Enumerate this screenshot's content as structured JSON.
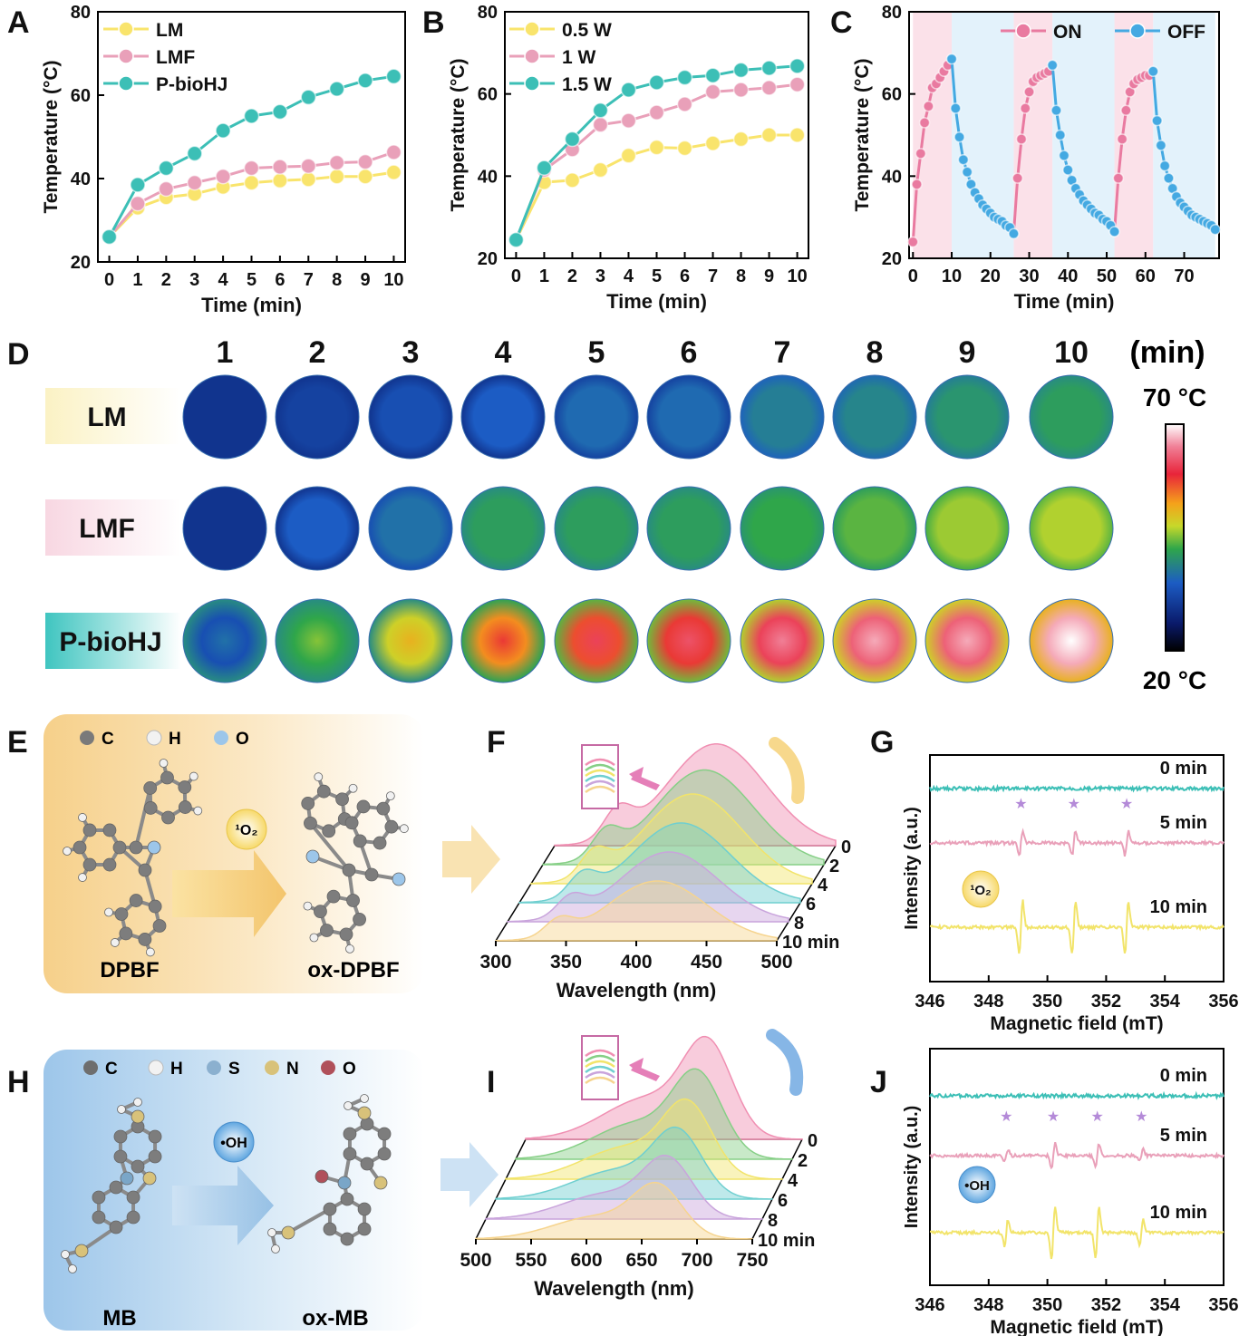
{
  "panel_labels": {
    "A": "A",
    "B": "B",
    "C": "C",
    "D": "D",
    "E": "E",
    "F": "F",
    "G": "G",
    "H": "H",
    "I": "I",
    "J": "J"
  },
  "chart_data": [
    {
      "id": "A",
      "type": "line",
      "xlabel": "Time (min)",
      "ylabel": "Temperature (°C)",
      "xlim": [
        -0.4,
        10.4
      ],
      "ylim": [
        20,
        80
      ],
      "xticks": [
        "0",
        "1",
        "2",
        "3",
        "4",
        "5",
        "6",
        "7",
        "8",
        "9",
        "10"
      ],
      "yticks": [
        "20",
        "40",
        "60",
        "80"
      ],
      "legend_position": "top-left",
      "x": [
        0,
        1,
        2,
        3,
        4,
        5,
        6,
        7,
        8,
        9,
        10
      ],
      "series": [
        {
          "name": "LM",
          "color": "#f9e46c",
          "values": [
            26,
            33,
            35.5,
            36.3,
            38,
            39,
            39.5,
            39.8,
            40.5,
            40.5,
            41.5
          ]
        },
        {
          "name": "LMF",
          "color": "#e9a0b9",
          "values": [
            26,
            34,
            37.5,
            39,
            40.5,
            42.5,
            42.8,
            43,
            43.8,
            44,
            46.3
          ]
        },
        {
          "name": "P-bioHJ",
          "color": "#3cbfb6",
          "values": [
            26,
            38.5,
            42.5,
            46,
            51.5,
            55,
            56,
            59.5,
            61.5,
            63.5,
            64.5
          ]
        }
      ]
    },
    {
      "id": "B",
      "type": "line",
      "xlabel": "Time (min)",
      "ylabel": "Temperature (°C)",
      "xlim": [
        -0.4,
        10.4
      ],
      "ylim": [
        20,
        80
      ],
      "xticks": [
        "0",
        "1",
        "2",
        "3",
        "4",
        "5",
        "6",
        "7",
        "8",
        "9",
        "10"
      ],
      "yticks": [
        "20",
        "40",
        "60",
        "80"
      ],
      "legend_position": "top-left",
      "x": [
        0,
        1,
        2,
        3,
        4,
        5,
        6,
        7,
        8,
        9,
        10
      ],
      "series": [
        {
          "name": "0.5 W",
          "color": "#f9e46c",
          "values": [
            24.5,
            38.5,
            39,
            41.5,
            45,
            47,
            46.8,
            48,
            49,
            50,
            50
          ]
        },
        {
          "name": "1 W",
          "color": "#e9a0b9",
          "values": [
            24.5,
            41.5,
            46.5,
            52.5,
            53.5,
            55.5,
            57.5,
            60.5,
            61,
            61.5,
            62.3
          ]
        },
        {
          "name": "1.5 W",
          "color": "#3cbfb6",
          "values": [
            24.5,
            42,
            49,
            56,
            61,
            62.8,
            64,
            64.5,
            65.8,
            66.3,
            66.8
          ]
        }
      ]
    },
    {
      "id": "C",
      "type": "line",
      "xlabel": "Time (min)",
      "ylabel": "Temperature (°C)",
      "xlim": [
        -1,
        79
      ],
      "ylim": [
        20,
        80
      ],
      "xticks": [
        "0",
        "10",
        "20",
        "30",
        "40",
        "50",
        "60",
        "70"
      ],
      "yticks": [
        "20",
        "40",
        "60",
        "80"
      ],
      "legend_position": "top-right",
      "on_intervals": [
        [
          0,
          10
        ],
        [
          26,
          36
        ],
        [
          52,
          62
        ]
      ],
      "off_intervals": [
        [
          10,
          26
        ],
        [
          36,
          52
        ],
        [
          62,
          78
        ]
      ],
      "series": [
        {
          "name": "ON",
          "color": "#e97aa0",
          "cycles": [
            {
              "x": [
                0,
                1,
                2,
                3,
                4,
                5,
                6,
                7,
                8,
                9,
                10
              ],
              "values": [
                24,
                38,
                45.5,
                53,
                57,
                61.5,
                62.5,
                64,
                65.5,
                67,
                68.5
              ]
            },
            {
              "x": [
                26,
                27,
                28,
                29,
                30,
                31,
                32,
                33,
                34,
                35,
                36
              ],
              "values": [
                26,
                39.5,
                49,
                56.5,
                60.5,
                63,
                64,
                64.5,
                65,
                65.5,
                67
              ]
            },
            {
              "x": [
                52,
                53,
                54,
                55,
                56,
                57,
                58,
                59,
                60,
                61,
                62
              ],
              "values": [
                26.5,
                39.5,
                49,
                56,
                60.5,
                62.5,
                63.5,
                64,
                64.5,
                64.5,
                65.5
              ]
            }
          ]
        },
        {
          "name": "OFF",
          "color": "#44a9e2",
          "cycles": [
            {
              "x": [
                10,
                11,
                12,
                13,
                14,
                15,
                16,
                17,
                18,
                19,
                20,
                21,
                22,
                23,
                24,
                25,
                26
              ],
              "values": [
                68.5,
                56.5,
                49.5,
                44,
                41,
                38,
                36,
                34.5,
                33,
                32,
                31,
                30,
                29.5,
                29,
                28,
                27.5,
                26
              ]
            },
            {
              "x": [
                36,
                37,
                38,
                39,
                40,
                41,
                42,
                43,
                44,
                45,
                46,
                47,
                48,
                49,
                50,
                51,
                52
              ],
              "values": [
                67,
                56,
                50,
                45,
                41.5,
                39,
                37,
                35.5,
                34,
                33,
                32,
                31,
                30.5,
                29.5,
                29,
                28,
                26.5
              ]
            },
            {
              "x": [
                62,
                63,
                64,
                65,
                66,
                67,
                68,
                69,
                70,
                71,
                72,
                73,
                74,
                75,
                76,
                77,
                78
              ],
              "values": [
                65.5,
                53.5,
                47.5,
                42.5,
                39.5,
                37,
                35,
                33.5,
                32.5,
                31.5,
                30.5,
                30,
                29.5,
                29,
                28.5,
                28,
                27
              ]
            }
          ]
        }
      ]
    },
    {
      "id": "D",
      "type": "heatmap",
      "time_labels": [
        "1",
        "2",
        "3",
        "4",
        "5",
        "6",
        "7",
        "8",
        "9",
        "10"
      ],
      "unit_label": "(min)",
      "row_labels": [
        "LM",
        "LMF",
        "P-bioHJ"
      ],
      "colorbar_max": "70 °C",
      "colorbar_min": "20 °C",
      "temperatures": [
        [
          22,
          23,
          24,
          25,
          27,
          27,
          30,
          31,
          34,
          36
        ],
        [
          22,
          25,
          28,
          36,
          36,
          36,
          38,
          40,
          43,
          44
        ],
        [
          28,
          42,
          50,
          57,
          60,
          61,
          64,
          66,
          66,
          70
        ]
      ]
    },
    {
      "id": "F",
      "type": "line",
      "xlabel": "Wavelength (nm)",
      "xticks": [
        "300",
        "350",
        "400",
        "450",
        "500"
      ],
      "xlim": [
        300,
        500
      ],
      "depth_labels": [
        "0",
        "2",
        "4",
        "6",
        "8",
        "10 min"
      ]
    },
    {
      "id": "G",
      "type": "line",
      "xlabel": "Magnetic field (mT)",
      "ylabel": "Intensity (a.u.)",
      "xticks": [
        "346",
        "348",
        "350",
        "352",
        "354",
        "356"
      ],
      "xlim": [
        346,
        356
      ],
      "trace_labels": [
        "0 min",
        "5 min",
        "10 min"
      ],
      "peak_positions": [
        349.1,
        350.9,
        352.7
      ]
    },
    {
      "id": "I",
      "type": "line",
      "xlabel": "Wavelength (nm)",
      "xticks": [
        "500",
        "550",
        "600",
        "650",
        "700",
        "750"
      ],
      "xlim": [
        500,
        750
      ],
      "depth_labels": [
        "0",
        "2",
        "4",
        "6",
        "8",
        "10 min"
      ]
    },
    {
      "id": "J",
      "type": "line",
      "xlabel": "Magnetic field (mT)",
      "ylabel": "Intensity (a.u.)",
      "xticks": [
        "346",
        "348",
        "350",
        "352",
        "354",
        "356"
      ],
      "xlim": [
        346,
        356
      ],
      "trace_labels": [
        "0 min",
        "5 min",
        "10 min"
      ],
      "peak_positions": [
        348.6,
        350.2,
        351.7,
        353.2
      ]
    }
  ],
  "schemes": {
    "E": {
      "legend": [
        "C",
        "H",
        "O"
      ],
      "reactant": "DPBF",
      "product": "ox-DPBF",
      "species": "¹O₂"
    },
    "H": {
      "legend": [
        "C",
        "H",
        "S",
        "N",
        "O"
      ],
      "reactant": "MB",
      "product": "ox-MB",
      "species": "•OH"
    }
  },
  "colors": {
    "yellow": "#f9e46c",
    "pink": "#e9a0b9",
    "teal": "#3cbfb6",
    "on": "#e97aa0",
    "off": "#44a9e2",
    "star": "#b48ad8"
  }
}
